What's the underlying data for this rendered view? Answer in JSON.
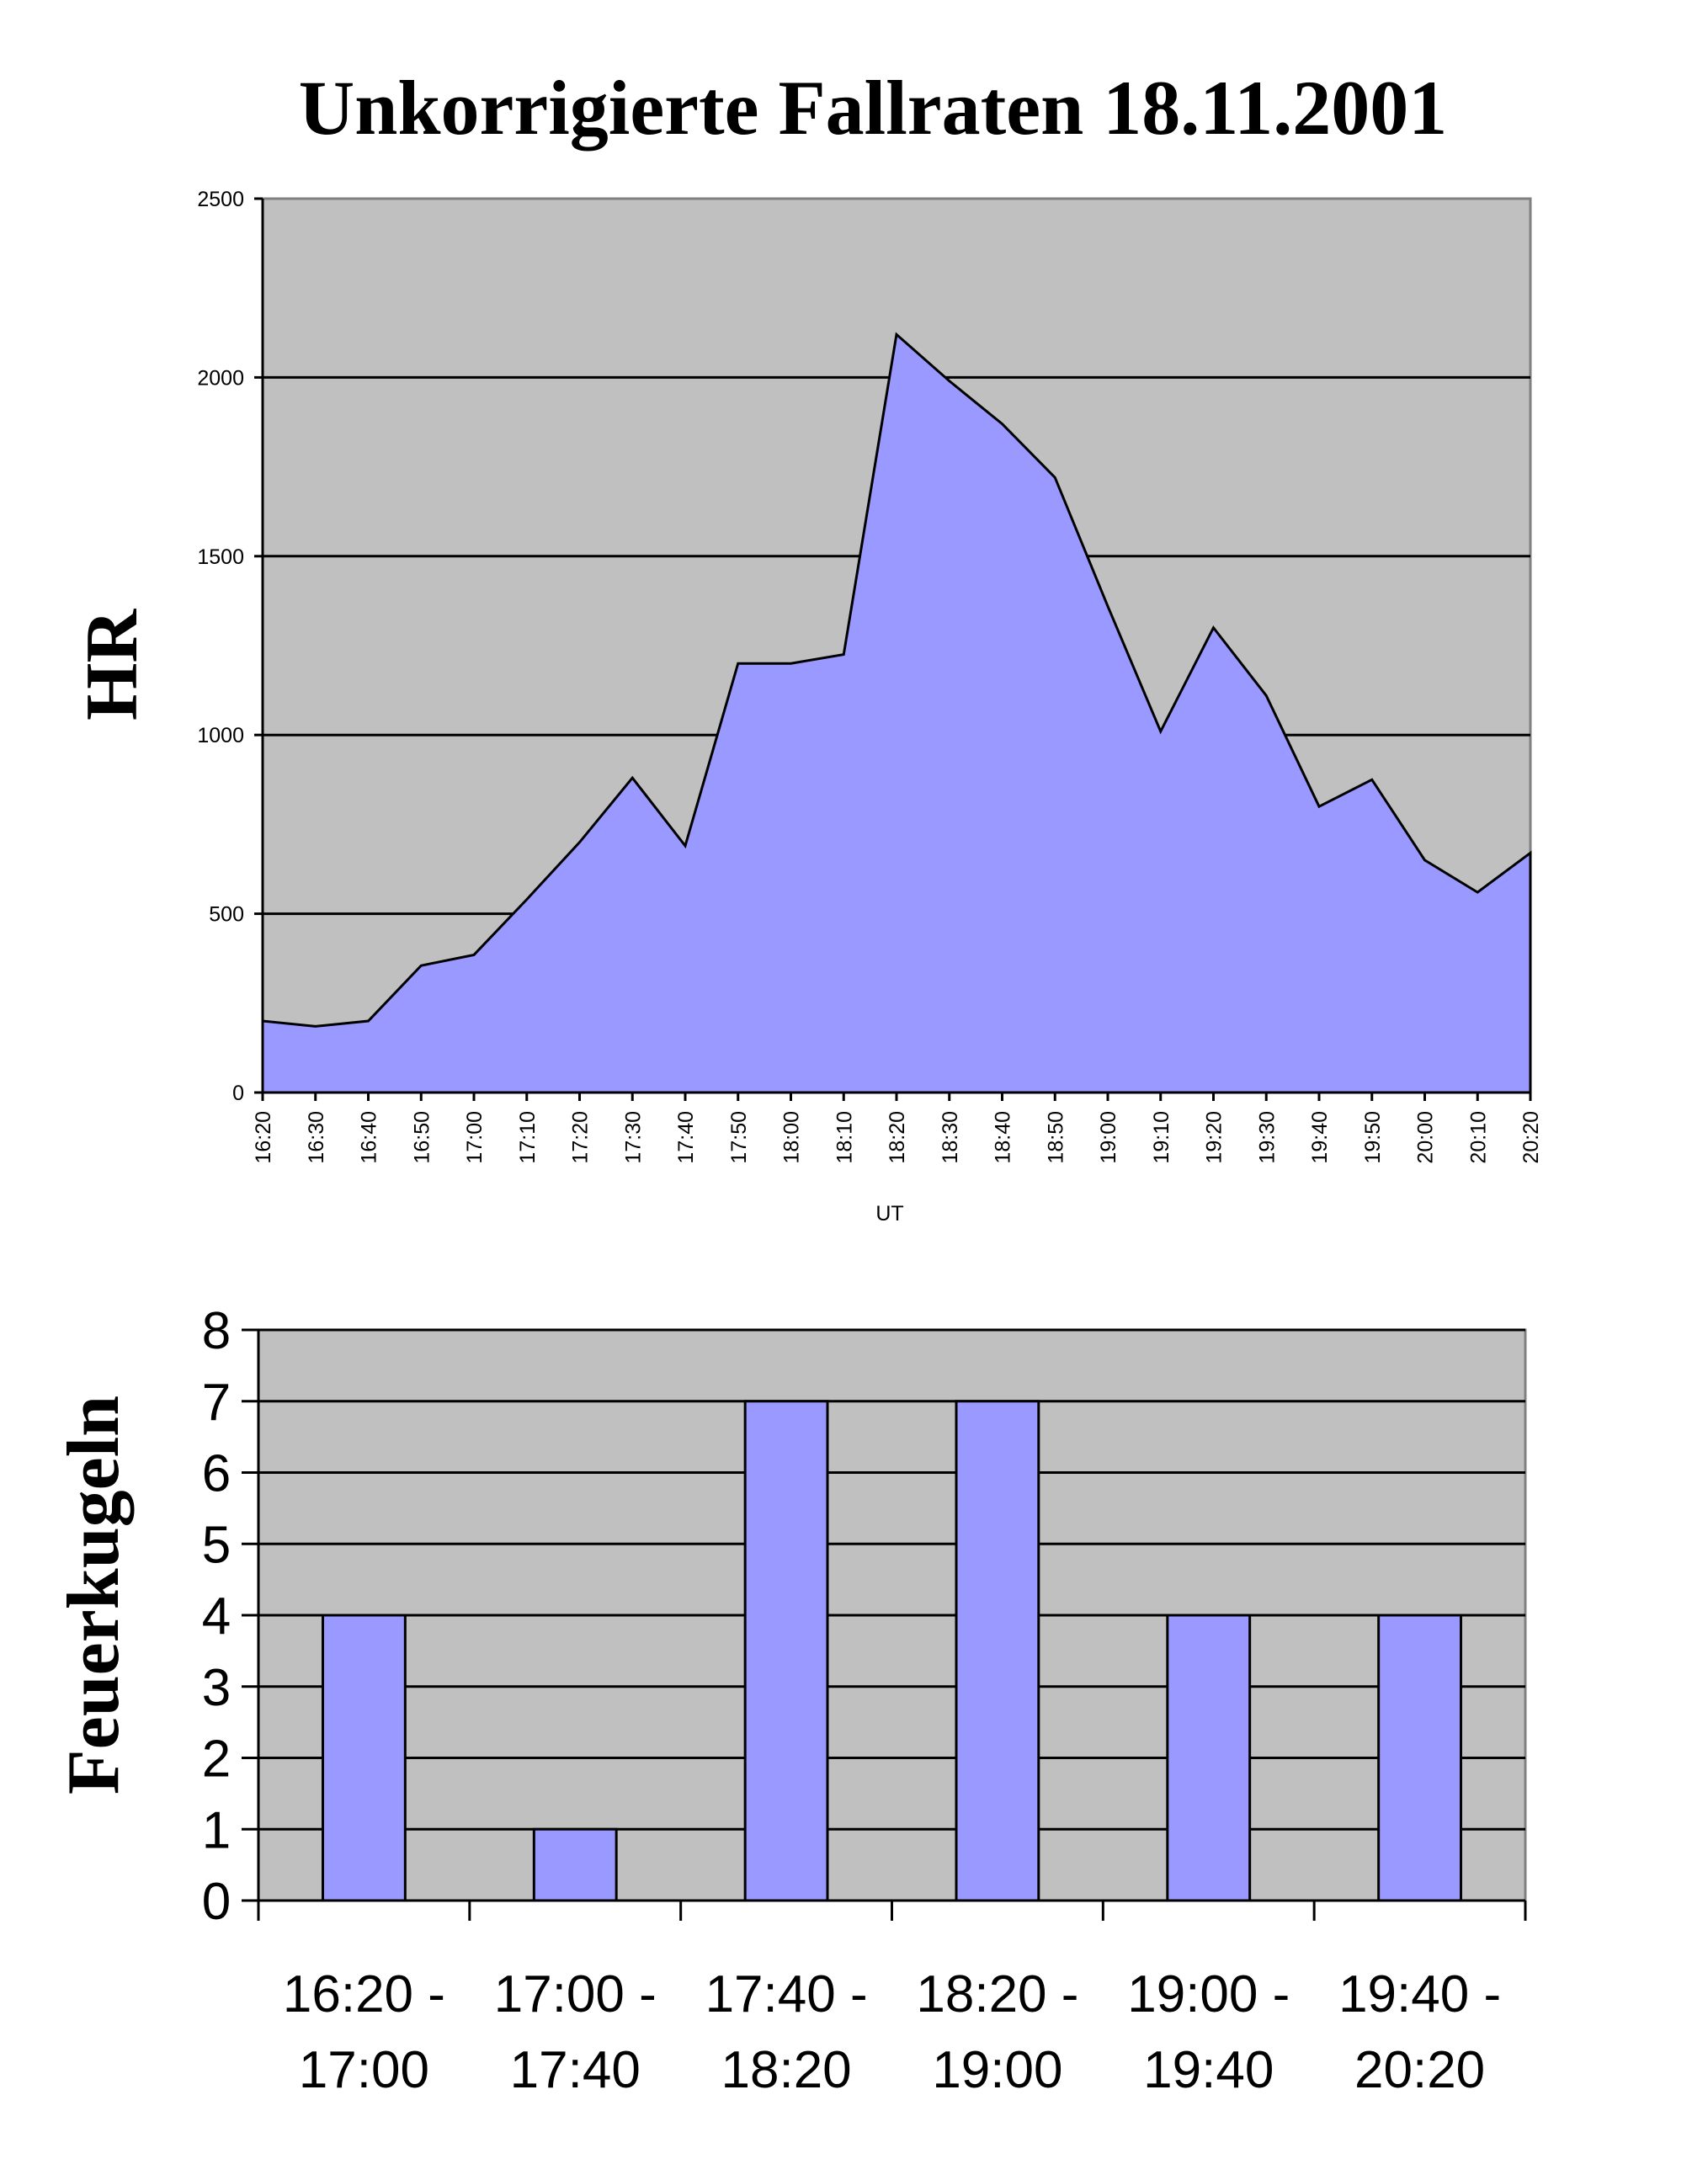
{
  "title": "Unkorrigierte Fallraten 18.11.2001",
  "colors": {
    "plot_background": "#c0c0c0",
    "series_fill": "#9999ff",
    "series_stroke": "#000000",
    "gridline": "#000000"
  },
  "chart_data": [
    {
      "type": "area",
      "ylabel": "HR",
      "xlabel": "UT",
      "ylim": [
        0,
        2500
      ],
      "y_ticks": [
        0,
        500,
        1000,
        1500,
        2000,
        2500
      ],
      "grid": true,
      "x": [
        "16:20",
        "16:30",
        "16:40",
        "16:50",
        "17:00",
        "17:10",
        "17:20",
        "17:30",
        "17:40",
        "17:50",
        "18:00",
        "18:10",
        "18:20",
        "18:30",
        "18:40",
        "18:50",
        "19:00",
        "19:10",
        "19:20",
        "19:30",
        "19:40",
        "19:50",
        "20:00",
        "20:10",
        "20:20"
      ],
      "series": [
        {
          "values": [
            200,
            185,
            200,
            355,
            385,
            540,
            700,
            880,
            690,
            1200,
            1200,
            1225,
            2120,
            1990,
            1870,
            1720,
            1360,
            1010,
            1300,
            1110,
            800,
            875,
            650,
            560,
            670
          ]
        }
      ]
    },
    {
      "type": "bar",
      "ylabel": "Feuerkugeln",
      "ylim": [
        0,
        8
      ],
      "y_ticks": [
        0,
        1,
        2,
        3,
        4,
        5,
        6,
        7,
        8
      ],
      "grid": true,
      "categories": [
        [
          "16:20 -",
          "17:00"
        ],
        [
          "17:00 -",
          "17:40"
        ],
        [
          "17:40 -",
          "18:20"
        ],
        [
          "18:20 -",
          "19:00"
        ],
        [
          "19:00 -",
          "19:40"
        ],
        [
          "19:40 -",
          "20:20"
        ]
      ],
      "values": [
        4,
        1,
        7,
        7,
        4,
        4
      ]
    }
  ]
}
